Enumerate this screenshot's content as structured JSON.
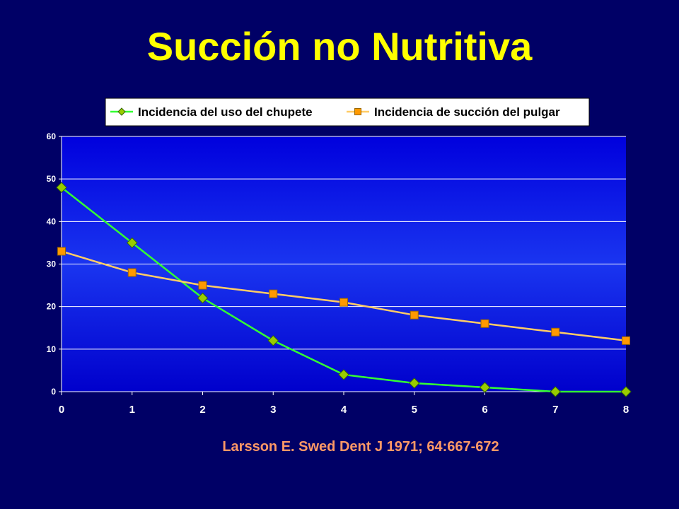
{
  "slide": {
    "title": "Succión no Nutritiva",
    "citation": "Larsson E. Swed Dent J 1971; 64:667-672"
  },
  "chart_data": {
    "type": "line",
    "x": [
      0,
      1,
      2,
      3,
      4,
      5,
      6,
      7,
      8
    ],
    "xlim": [
      0,
      8
    ],
    "ylim": [
      0,
      60
    ],
    "x_ticks": [
      "0",
      "1",
      "2",
      "3",
      "4",
      "5",
      "6",
      "7",
      "8"
    ],
    "y_ticks": [
      "0",
      "10",
      "20",
      "30",
      "40",
      "50",
      "60"
    ],
    "grid": "horizontal",
    "legend_position": "top",
    "series": [
      {
        "name": "Incidencia del uso del chupete",
        "values": [
          48,
          35,
          22,
          12,
          4,
          2,
          1,
          0,
          0
        ],
        "color": "#33ff33",
        "marker": "diamond",
        "marker_color": "#99cc00"
      },
      {
        "name": "Incidencia de succión del pulgar",
        "values": [
          33,
          28,
          25,
          23,
          21,
          18,
          16,
          14,
          12
        ],
        "color": "#ffcc66",
        "marker": "square",
        "marker_color": "#ff9900"
      }
    ]
  }
}
